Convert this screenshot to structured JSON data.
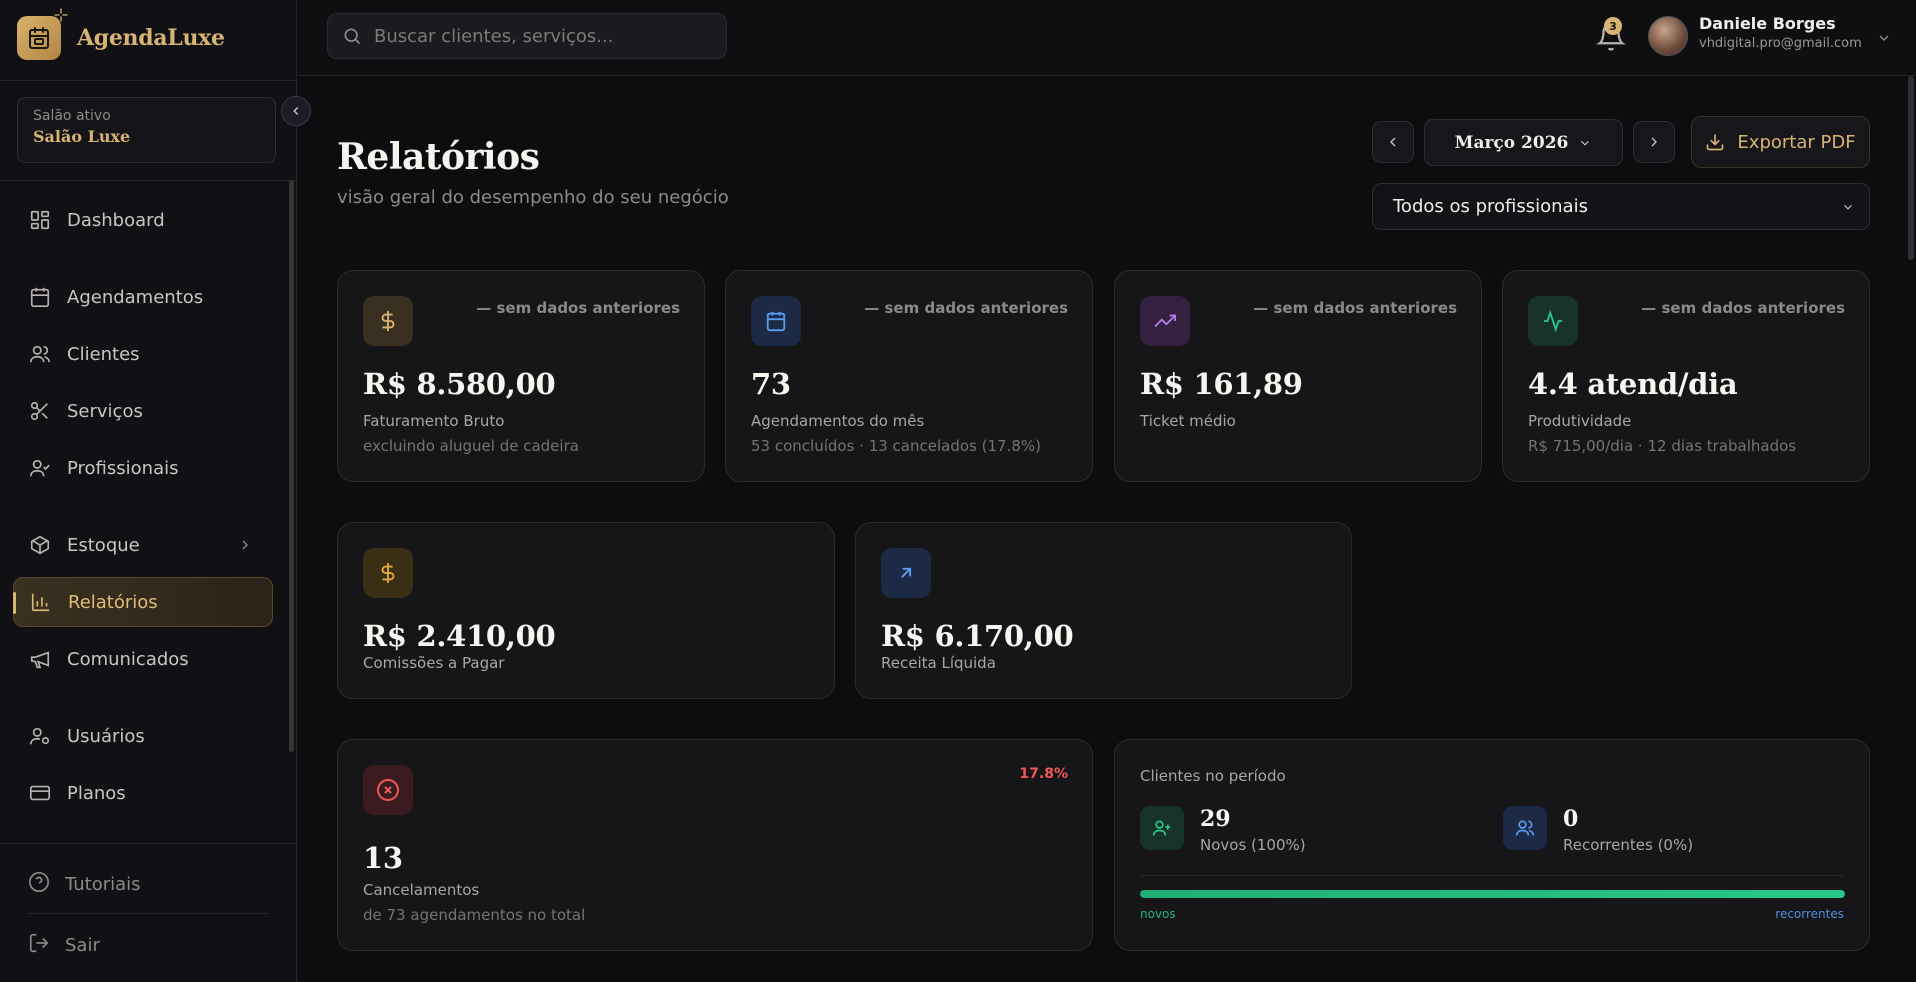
{
  "app": {
    "name": "AgendaLuxe"
  },
  "salon": {
    "label": "Salão ativo",
    "name": "Salão Luxe"
  },
  "nav": {
    "dashboard": "Dashboard",
    "agendamentos": "Agendamentos",
    "clientes": "Clientes",
    "servicos": "Serviços",
    "profissionais": "Profissionais",
    "estoque": "Estoque",
    "relatorios": "Relatórios",
    "comunicados": "Comunicados",
    "usuarios": "Usuários",
    "planos": "Planos",
    "tutoriais": "Tutoriais",
    "sair": "Sair"
  },
  "search": {
    "placeholder": "Buscar clientes, serviços..."
  },
  "notifications": {
    "count": "3"
  },
  "user": {
    "name": "Daniele Borges",
    "email": "vhdigital.pro@gmail.com"
  },
  "page": {
    "title": "Relatórios",
    "subtitle": "visão geral do desempenho do seu negócio"
  },
  "controls": {
    "month": "Março 2026",
    "export": "Exportar PDF",
    "professional_filter": "Todos os profissionais"
  },
  "kpis": [
    {
      "trend": "— sem dados anteriores",
      "value": "R$ 8.580,00",
      "label": "Faturamento Bruto",
      "sub": "excluindo aluguel de cadeira"
    },
    {
      "trend": "— sem dados anteriores",
      "value": "73",
      "label": "Agendamentos do mês",
      "sub": "53 concluídos · 13 cancelados (17.8%)"
    },
    {
      "trend": "— sem dados anteriores",
      "value": "R$ 161,89",
      "label": "Ticket médio",
      "sub": ""
    },
    {
      "trend": "— sem dados anteriores",
      "value": "4.4 atend/dia",
      "label": "Produtividade",
      "sub": "R$ 715,00/dia · 12 dias trabalhados"
    }
  ],
  "finance": [
    {
      "value": "R$ 2.410,00",
      "label": "Comissões a Pagar"
    },
    {
      "value": "R$ 6.170,00",
      "label": "Receita Líquida"
    }
  ],
  "cancel": {
    "pct": "17.8%",
    "value": "13",
    "label": "Cancelamentos",
    "sub": "de 73 agendamentos no total"
  },
  "clients": {
    "title": "Clientes no período",
    "new_count": "29",
    "new_label": "Novos (100%)",
    "rec_count": "0",
    "rec_label": "Recorrentes (0%)",
    "bar_left": "novos",
    "bar_right": "recorrentes",
    "new_fraction": 1.0
  },
  "colors": {
    "accent": "#d7b473",
    "danger": "#ef5757",
    "success": "#29c78a",
    "info": "#4f8fd9"
  }
}
